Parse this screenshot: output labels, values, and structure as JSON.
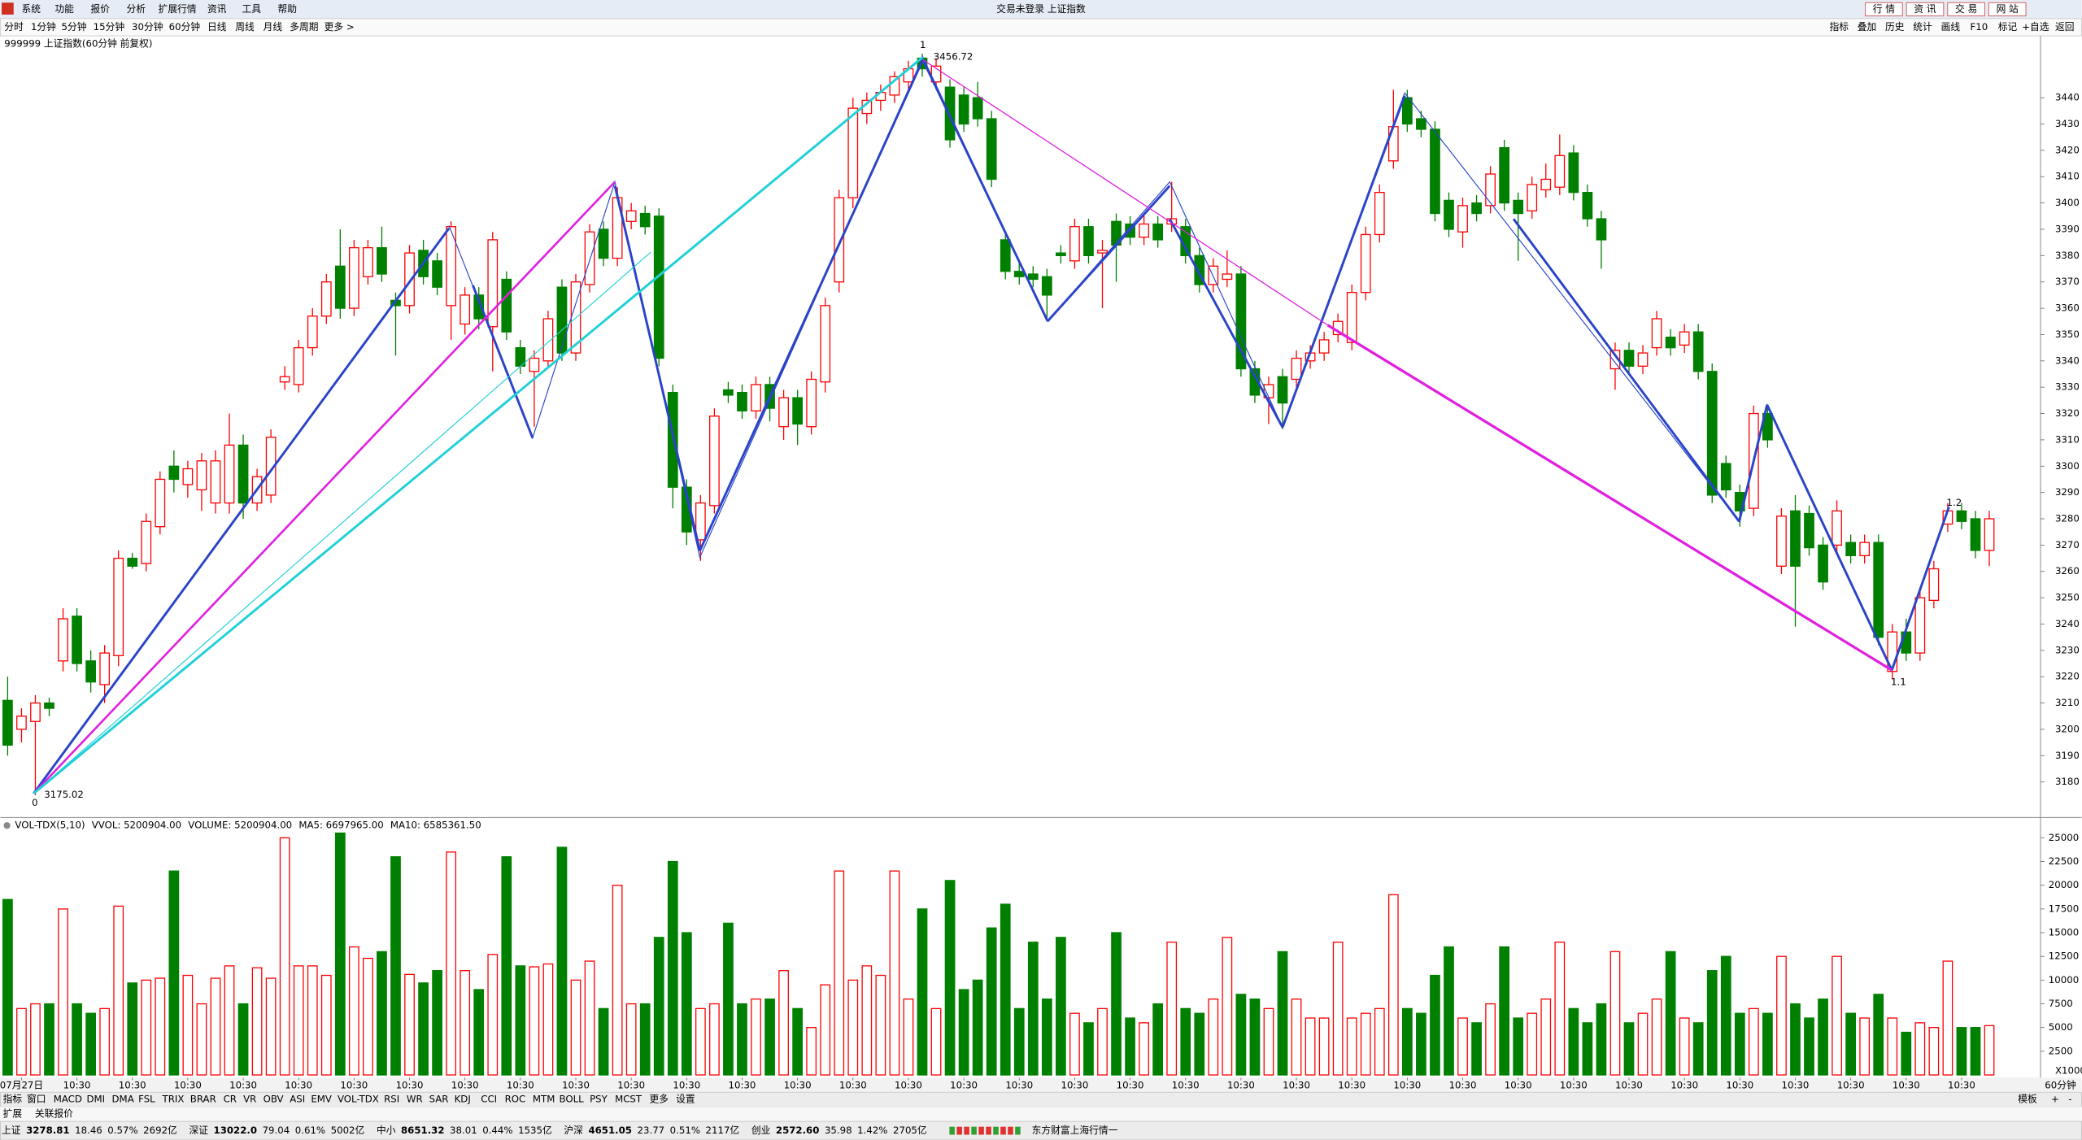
{
  "menu": {
    "items": [
      "系统",
      "功能",
      "报价",
      "分析",
      "扩展行情",
      "资讯",
      "工具",
      "帮助"
    ],
    "status": "交易未登录 上证指数",
    "buttons": [
      "行 情",
      "资 讯",
      "交 易",
      "网 站"
    ]
  },
  "periods": {
    "items": [
      "分时",
      "1分钟",
      "5分钟",
      "15分钟",
      "30分钟",
      "60分钟",
      "日线",
      "周线",
      "月线",
      "多周期",
      "更多 >"
    ],
    "tools": [
      "指标",
      "叠加",
      "历史",
      "统计",
      "画线",
      "F10",
      "标记",
      "+自选",
      "返回"
    ]
  },
  "chart_data": [
    {
      "type": "candlestick",
      "title": "999999 上证指数(60分钟 前复权)",
      "up_color": "#ff0000",
      "down_color": "#008000",
      "period_label": "60分钟",
      "wave_labels": [
        "0",
        "1",
        "1.1",
        "1.2"
      ],
      "ylim": [
        3167,
        3463
      ],
      "yticks": [
        3180,
        3190,
        3200,
        3210,
        3220,
        3230,
        3240,
        3250,
        3260,
        3270,
        3280,
        3290,
        3300,
        3310,
        3320,
        3330,
        3340,
        3350,
        3360,
        3370,
        3380,
        3390,
        3400,
        3410,
        3420,
        3430,
        3440
      ],
      "xticks": [
        {
          "value": 1,
          "label": "07月27日"
        },
        {
          "value": 5,
          "label": "10:30"
        },
        {
          "value": 9,
          "label": "10:30"
        },
        {
          "value": 13,
          "label": "10:30"
        },
        {
          "value": 17,
          "label": "10:30"
        },
        {
          "value": 21,
          "label": "10:30"
        },
        {
          "value": 25,
          "label": "10:30"
        },
        {
          "value": 29,
          "label": "10:30"
        },
        {
          "value": 33,
          "label": "10:30"
        },
        {
          "value": 37,
          "label": "10:30"
        },
        {
          "value": 41,
          "label": "10:30"
        },
        {
          "value": 45,
          "label": "10:30"
        },
        {
          "value": 49,
          "label": "10:30"
        },
        {
          "value": 53,
          "label": "10:30"
        },
        {
          "value": 57,
          "label": "10:30"
        },
        {
          "value": 61,
          "label": "10:30"
        },
        {
          "value": 65,
          "label": "10:30"
        },
        {
          "value": 69,
          "label": "10:30"
        },
        {
          "value": 73,
          "label": "10:30"
        },
        {
          "value": 77,
          "label": "10:30"
        },
        {
          "value": 81,
          "label": "10:30"
        },
        {
          "value": 85,
          "label": "10:30"
        },
        {
          "value": 89,
          "label": "10:30"
        },
        {
          "value": 93,
          "label": "10:30"
        },
        {
          "value": 97,
          "label": "10:30"
        },
        {
          "value": 101,
          "label": "10:30"
        },
        {
          "value": 105,
          "label": "10:30"
        },
        {
          "value": 109,
          "label": "10:30"
        },
        {
          "value": 113,
          "label": "10:30"
        },
        {
          "value": 117,
          "label": "10:30"
        },
        {
          "value": 121,
          "label": "10:30"
        },
        {
          "value": 125,
          "label": "10:30"
        },
        {
          "value": 129,
          "label": "10:30"
        },
        {
          "value": 133,
          "label": "10:30"
        },
        {
          "value": 137,
          "label": "10:30"
        },
        {
          "value": 141,
          "label": "10:30"
        }
      ],
      "ohlc": [
        [
          3211,
          3220,
          3190,
          3194
        ],
        [
          3200,
          3208,
          3195,
          3205
        ],
        [
          3203,
          3213,
          3175.02,
          3210
        ],
        [
          3210,
          3212,
          3205,
          3208
        ],
        [
          3226,
          3246,
          3222,
          3242
        ],
        [
          3243,
          3246,
          3222,
          3225
        ],
        [
          3226,
          3230,
          3214,
          3218
        ],
        [
          3217,
          3232,
          3210,
          3229
        ],
        [
          3228,
          3268,
          3224,
          3265
        ],
        [
          3265,
          3267,
          3261,
          3262
        ],
        [
          3263,
          3282,
          3260,
          3279
        ],
        [
          3277,
          3298,
          3274,
          3295
        ],
        [
          3300,
          3306,
          3290,
          3295
        ],
        [
          3293,
          3302,
          3288,
          3299
        ],
        [
          3291,
          3305,
          3283,
          3302
        ],
        [
          3286,
          3306,
          3282,
          3302
        ],
        [
          3286,
          3320,
          3282,
          3308
        ],
        [
          3308,
          3312,
          3280,
          3286
        ],
        [
          3286,
          3299,
          3283,
          3296
        ],
        [
          3289,
          3314,
          3286,
          3311
        ],
        [
          3332,
          3338,
          3329,
          3334
        ],
        [
          3331,
          3348,
          3328,
          3345
        ],
        [
          3345,
          3360,
          3342,
          3357
        ],
        [
          3357,
          3373,
          3354,
          3370
        ],
        [
          3376,
          3390,
          3356,
          3360
        ],
        [
          3360,
          3386,
          3357,
          3383
        ],
        [
          3372,
          3386,
          3369,
          3383
        ],
        [
          3383,
          3391,
          3370,
          3373
        ],
        [
          3363,
          3366,
          3342,
          3361
        ],
        [
          3361,
          3384,
          3358,
          3381
        ],
        [
          3382,
          3386,
          3369,
          3372
        ],
        [
          3378,
          3381,
          3365,
          3368
        ],
        [
          3361,
          3393,
          3348,
          3391
        ],
        [
          3354,
          3368,
          3350,
          3365
        ],
        [
          3365,
          3368,
          3352,
          3356
        ],
        [
          3353,
          3389,
          3336,
          3386
        ],
        [
          3371,
          3374,
          3348,
          3351
        ],
        [
          3345,
          3348,
          3335,
          3338
        ],
        [
          3336,
          3344,
          3315,
          3341
        ],
        [
          3340,
          3359,
          3337,
          3356
        ],
        [
          3368,
          3371,
          3340,
          3343
        ],
        [
          3343,
          3373,
          3340,
          3370
        ],
        [
          3369,
          3392,
          3366,
          3389
        ],
        [
          3390,
          3393,
          3376,
          3379
        ],
        [
          3379,
          3406,
          3376,
          3402
        ],
        [
          3393,
          3400,
          3390,
          3397
        ],
        [
          3396,
          3399,
          3388,
          3391
        ],
        [
          3395,
          3398,
          3338,
          3341
        ],
        [
          3328,
          3331,
          3284,
          3292
        ],
        [
          3292,
          3295,
          3270,
          3275
        ],
        [
          3272,
          3289,
          3264,
          3286
        ],
        [
          3285,
          3322,
          3282,
          3319
        ],
        [
          3329,
          3332,
          3324,
          3327
        ],
        [
          3328,
          3331,
          3318,
          3321
        ],
        [
          3321,
          3334,
          3318,
          3331
        ],
        [
          3331,
          3334,
          3317,
          3322
        ],
        [
          3315,
          3329,
          3310,
          3326
        ],
        [
          3326,
          3329,
          3308,
          3316
        ],
        [
          3315,
          3336,
          3312,
          3333
        ],
        [
          3332,
          3364,
          3328,
          3361
        ],
        [
          3370,
          3405,
          3366,
          3402
        ],
        [
          3402,
          3440,
          3398,
          3436
        ],
        [
          3434,
          3442,
          3430,
          3439
        ],
        [
          3439,
          3445,
          3435,
          3442
        ],
        [
          3441,
          3450,
          3438,
          3448
        ],
        [
          3446,
          3454,
          3443,
          3451
        ],
        [
          3455,
          3456.72,
          3448,
          3451
        ],
        [
          3446,
          3455,
          3443,
          3452
        ],
        [
          3444,
          3447,
          3421,
          3424
        ],
        [
          3441,
          3444,
          3427,
          3430
        ],
        [
          3440,
          3446,
          3429,
          3432
        ],
        [
          3432,
          3435,
          3406,
          3409
        ],
        [
          3386,
          3389,
          3371,
          3374
        ],
        [
          3374,
          3377,
          3369,
          3372
        ],
        [
          3373,
          3376,
          3368,
          3371
        ],
        [
          3372,
          3375,
          3355,
          3365
        ],
        [
          3381,
          3384,
          3377,
          3380
        ],
        [
          3378,
          3394,
          3375,
          3391
        ],
        [
          3391,
          3394,
          3377,
          3380
        ],
        [
          3381,
          3386,
          3360,
          3382
        ],
        [
          3393,
          3396,
          3370,
          3384
        ],
        [
          3392,
          3395,
          3384,
          3387
        ],
        [
          3387,
          3396,
          3384,
          3392
        ],
        [
          3392,
          3395,
          3383,
          3386
        ],
        [
          3392,
          3408,
          3389,
          3394
        ],
        [
          3391,
          3394,
          3377,
          3380
        ],
        [
          3380,
          3383,
          3366,
          3369
        ],
        [
          3369,
          3379,
          3366,
          3376
        ],
        [
          3371,
          3382,
          3368,
          3373
        ],
        [
          3373,
          3376,
          3334,
          3337
        ],
        [
          3337,
          3340,
          3324,
          3327
        ],
        [
          3326,
          3334,
          3316,
          3331
        ],
        [
          3334,
          3337,
          3314,
          3324
        ],
        [
          3333,
          3344,
          3330,
          3341
        ],
        [
          3340,
          3346,
          3337,
          3343
        ],
        [
          3343,
          3351,
          3340,
          3348
        ],
        [
          3350,
          3358,
          3347,
          3355
        ],
        [
          3347,
          3369,
          3344,
          3366
        ],
        [
          3366,
          3391,
          3363,
          3388
        ],
        [
          3388,
          3407,
          3385,
          3404
        ],
        [
          3416,
          3443,
          3413,
          3429
        ],
        [
          3440,
          3443,
          3427,
          3430
        ],
        [
          3432,
          3435,
          3425,
          3428
        ],
        [
          3428,
          3431,
          3393,
          3396
        ],
        [
          3401,
          3404,
          3387,
          3390
        ],
        [
          3389,
          3402,
          3383,
          3399
        ],
        [
          3400,
          3403,
          3393,
          3396
        ],
        [
          3399,
          3414,
          3396,
          3411
        ],
        [
          3421,
          3424,
          3397,
          3400
        ],
        [
          3401,
          3404,
          3378,
          3396
        ],
        [
          3397,
          3410,
          3394,
          3407
        ],
        [
          3405,
          3415,
          3402,
          3409
        ],
        [
          3406,
          3426,
          3403,
          3418
        ],
        [
          3419,
          3422,
          3401,
          3404
        ],
        [
          3404,
          3407,
          3391,
          3394
        ],
        [
          3394,
          3397,
          3375,
          3386
        ],
        [
          3337,
          3347,
          3329,
          3344
        ],
        [
          3344,
          3347,
          3335,
          3338
        ],
        [
          3338,
          3346,
          3335,
          3343
        ],
        [
          3345,
          3359,
          3342,
          3356
        ],
        [
          3349,
          3352,
          3342,
          3345
        ],
        [
          3346,
          3354,
          3343,
          3351
        ],
        [
          3351,
          3354,
          3333,
          3336
        ],
        [
          3336,
          3339,
          3286,
          3289
        ],
        [
          3301,
          3304,
          3288,
          3291
        ],
        [
          3290,
          3293,
          3277,
          3283
        ],
        [
          3284,
          3323,
          3281,
          3320
        ],
        [
          3320,
          3323,
          3307,
          3310
        ],
        [
          3262,
          3284,
          3259,
          3281
        ],
        [
          3283,
          3289,
          3239,
          3262
        ],
        [
          3282,
          3285,
          3266,
          3269
        ],
        [
          3270,
          3273,
          3253,
          3256
        ],
        [
          3270,
          3287,
          3267,
          3283
        ],
        [
          3271,
          3274,
          3263,
          3266
        ],
        [
          3266,
          3274,
          3263,
          3271
        ],
        [
          3271,
          3274,
          3232,
          3235
        ],
        [
          3222,
          3240,
          3219,
          3237
        ],
        [
          3237,
          3242,
          3226,
          3229
        ],
        [
          3229,
          3253,
          3226,
          3250
        ],
        [
          3249,
          3264,
          3246,
          3261
        ],
        [
          3278,
          3286,
          3275,
          3283
        ],
        [
          3283,
          3286,
          3276,
          3279
        ],
        [
          3280,
          3283,
          3265,
          3268
        ],
        [
          3268,
          3283,
          3262,
          3280
        ]
      ]
    },
    {
      "type": "bar",
      "title": "VOL-TDX(5,10)",
      "unit_label": "X1000",
      "legend": [
        {
          "text": "VVOL: 5200904.00",
          "color": "#000080"
        },
        {
          "text": "VOLUME: 5200904.00",
          "color": "#ff00ff"
        },
        {
          "text": "MA5: 6697965.00",
          "color": "#ff00ff"
        },
        {
          "text": "MA10: 6585361.50",
          "color": "#808080"
        }
      ],
      "ylim": [
        0,
        27000
      ],
      "yticks": [
        2500,
        5000,
        7500,
        10000,
        12500,
        15000,
        17500,
        20000,
        22500,
        25000
      ],
      "values": [
        18500,
        7000,
        7500,
        7500,
        17500,
        7500,
        6500,
        7000,
        17800,
        9700,
        10000,
        10200,
        21500,
        10500,
        7500,
        10200,
        11500,
        7500,
        11300,
        10200,
        25000,
        11500,
        11500,
        10500,
        25500,
        13500,
        12300,
        13000,
        23000,
        10600,
        9700,
        11000,
        23500,
        11000,
        9000,
        12700,
        23000,
        11500,
        11400,
        11700,
        24000,
        10000,
        12000,
        7000,
        20000,
        7500,
        7500,
        14500,
        22500,
        15000,
        7000,
        7500,
        16000,
        7500,
        8000,
        8000,
        11000,
        7000,
        5000,
        9500,
        21500,
        10000,
        11500,
        10500,
        21500,
        8000,
        17500,
        7000,
        20500,
        9000,
        10000,
        15500,
        18000,
        7000,
        14000,
        8000,
        14500,
        6500,
        5500,
        7000,
        15000,
        6000,
        5500,
        7500,
        14000,
        7000,
        6500,
        8000,
        14500,
        8500,
        8000,
        7000,
        13000,
        8000,
        6000,
        6000,
        14000,
        6000,
        6500,
        7000,
        19000,
        7000,
        6500,
        10500,
        13500,
        6000,
        5500,
        7500,
        13500,
        6000,
        6500,
        8000,
        14000,
        7000,
        5500,
        7500,
        13000,
        5500,
        6500,
        8000,
        13000,
        6000,
        5500,
        11000,
        12500,
        6500,
        7000,
        6500,
        12500,
        7500,
        6000,
        8000,
        12500,
        6500,
        6000,
        8500,
        6000,
        4500,
        5500,
        5000,
        12000,
        5000,
        5000,
        5200
      ]
    }
  ],
  "indicator_tabs": {
    "items": [
      "指标",
      "窗口",
      "MACD",
      "DMI",
      "DMA",
      "FSL",
      "TRIX",
      "BRAR",
      "CR",
      "VR",
      "OBV",
      "ASI",
      "EMV",
      "VOL-TDX",
      "RSI",
      "WR",
      "SAR",
      "KDJ",
      "CCI",
      "ROC",
      "MTM",
      "BOLL",
      "PSY",
      "MCST",
      "更多",
      "设置"
    ],
    "right": [
      "模板",
      "+",
      "-"
    ],
    "extra": [
      "扩展",
      "关联报价"
    ]
  },
  "status_bar": {
    "quotes": [
      [
        "上证",
        "3278.81",
        "18.46",
        "0.57%",
        "2692亿"
      ],
      [
        "深证",
        "13022.0",
        "79.04",
        "0.61%",
        "5002亿"
      ],
      [
        "中小",
        "8651.32",
        "38.01",
        "0.44%",
        "1535亿"
      ],
      [
        "沪深",
        "4651.05",
        "23.77",
        "0.51%",
        "2117亿"
      ],
      [
        "创业",
        "2572.60",
        "35.98",
        "1.42%",
        "2705亿"
      ]
    ],
    "feed": "东方财富上海行情一"
  }
}
